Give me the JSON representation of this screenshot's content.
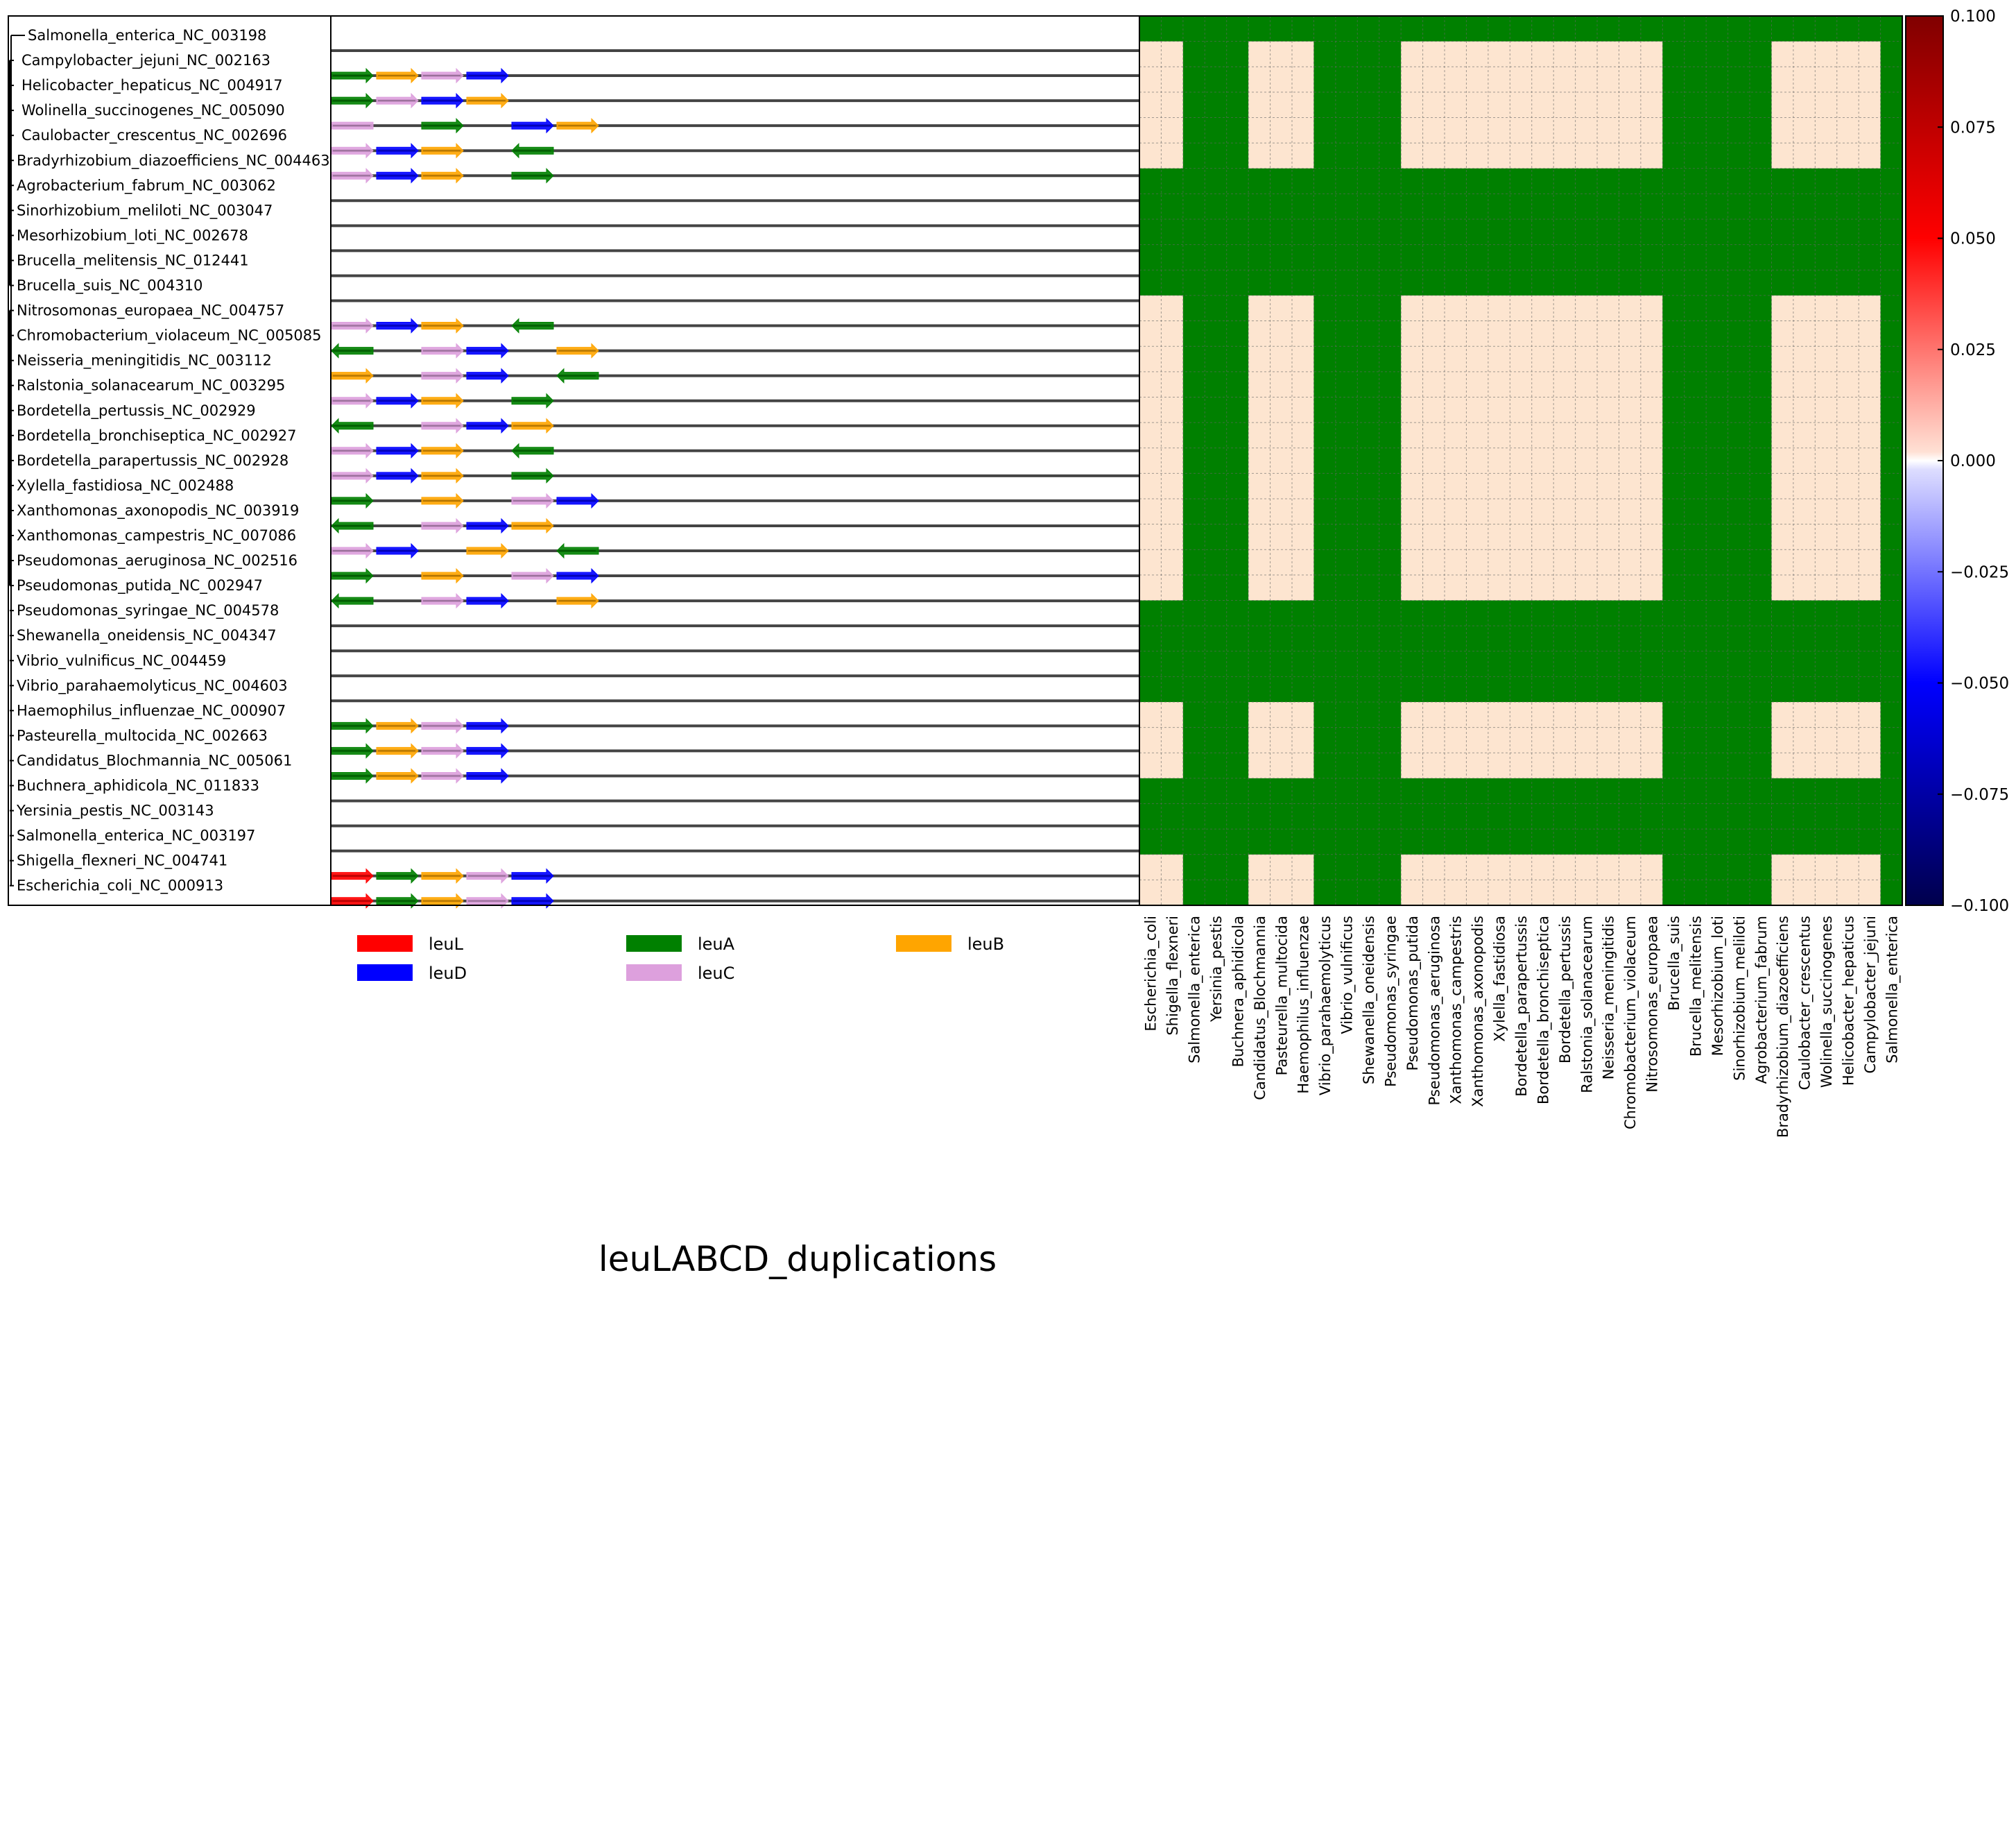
{
  "chart_data": [
    {
      "type": "gene-tracks",
      "title": "leuLABCD_duplications",
      "genomes": [
        {
          "name": "Salmonella_enterica_NC_003198",
          "genes": []
        },
        {
          "name": "Campylobacter_jejuni_NC_002163",
          "genes": [
            {
              "gene": "leuA",
              "slot": 0,
              "dir": 1
            },
            {
              "gene": "leuB",
              "slot": 1,
              "dir": 1
            },
            {
              "gene": "leuC",
              "slot": 2,
              "dir": 1
            },
            {
              "gene": "leuD",
              "slot": 3,
              "dir": 1
            }
          ]
        },
        {
          "name": "Helicobacter_hepaticus_NC_004917",
          "genes": [
            {
              "gene": "leuA",
              "slot": 0,
              "dir": 1
            },
            {
              "gene": "leuC",
              "slot": 1,
              "dir": 1
            },
            {
              "gene": "leuD",
              "slot": 2,
              "dir": 1
            },
            {
              "gene": "leuB",
              "slot": 3,
              "dir": 1
            }
          ]
        },
        {
          "name": "Wolinella_succinogenes_NC_005090",
          "genes": [
            {
              "gene": "leuC",
              "slot": 0,
              "dir": 0
            },
            {
              "gene": "leuA",
              "slot": 2,
              "dir": 1
            },
            {
              "gene": "leuD",
              "slot": 4,
              "dir": 1
            },
            {
              "gene": "leuB",
              "slot": 5,
              "dir": 1
            }
          ]
        },
        {
          "name": "Caulobacter_crescentus_NC_002696",
          "genes": [
            {
              "gene": "leuC",
              "slot": 0,
              "dir": 1
            },
            {
              "gene": "leuD",
              "slot": 1,
              "dir": 1
            },
            {
              "gene": "leuB",
              "slot": 2,
              "dir": 1
            },
            {
              "gene": "leuA",
              "slot": 4,
              "dir": -1
            }
          ]
        },
        {
          "name": "Bradyrhizobium_diazoefficiens_NC_004463",
          "genes": [
            {
              "gene": "leuC",
              "slot": 0,
              "dir": 1
            },
            {
              "gene": "leuD",
              "slot": 1,
              "dir": 1
            },
            {
              "gene": "leuB",
              "slot": 2,
              "dir": 1
            },
            {
              "gene": "leuA",
              "slot": 4,
              "dir": 1
            }
          ]
        },
        {
          "name": "Agrobacterium_fabrum_NC_003062",
          "genes": []
        },
        {
          "name": "Sinorhizobium_meliloti_NC_003047",
          "genes": []
        },
        {
          "name": "Mesorhizobium_loti_NC_002678",
          "genes": []
        },
        {
          "name": "Brucella_melitensis_NC_012441",
          "genes": []
        },
        {
          "name": "Brucella_suis_NC_004310",
          "genes": []
        },
        {
          "name": "Nitrosomonas_europaea_NC_004757",
          "genes": [
            {
              "gene": "leuC",
              "slot": 0,
              "dir": 1
            },
            {
              "gene": "leuD",
              "slot": 1,
              "dir": 1
            },
            {
              "gene": "leuB",
              "slot": 2,
              "dir": 1
            },
            {
              "gene": "leuA",
              "slot": 4,
              "dir": -1
            }
          ]
        },
        {
          "name": "Chromobacterium_violaceum_NC_005085",
          "genes": [
            {
              "gene": "leuA",
              "slot": 0,
              "dir": -1
            },
            {
              "gene": "leuC",
              "slot": 2,
              "dir": 1
            },
            {
              "gene": "leuD",
              "slot": 3,
              "dir": 1
            },
            {
              "gene": "leuB",
              "slot": 5,
              "dir": 1
            }
          ]
        },
        {
          "name": "Neisseria_meningitidis_NC_003112",
          "genes": [
            {
              "gene": "leuB",
              "slot": 0,
              "dir": 1
            },
            {
              "gene": "leuC",
              "slot": 2,
              "dir": 1
            },
            {
              "gene": "leuD",
              "slot": 3,
              "dir": 1
            },
            {
              "gene": "leuA",
              "slot": 5,
              "dir": -1
            }
          ]
        },
        {
          "name": "Ralstonia_solanacearum_NC_003295",
          "genes": [
            {
              "gene": "leuC",
              "slot": 0,
              "dir": 1
            },
            {
              "gene": "leuD",
              "slot": 1,
              "dir": 1
            },
            {
              "gene": "leuB",
              "slot": 2,
              "dir": 1
            },
            {
              "gene": "leuA",
              "slot": 4,
              "dir": 1
            }
          ]
        },
        {
          "name": "Bordetella_pertussis_NC_002929",
          "genes": [
            {
              "gene": "leuA",
              "slot": 0,
              "dir": -1
            },
            {
              "gene": "leuC",
              "slot": 2,
              "dir": 1
            },
            {
              "gene": "leuD",
              "slot": 3,
              "dir": 1
            },
            {
              "gene": "leuB",
              "slot": 4,
              "dir": 1
            }
          ]
        },
        {
          "name": "Bordetella_bronchiseptica_NC_002927",
          "genes": [
            {
              "gene": "leuC",
              "slot": 0,
              "dir": 1
            },
            {
              "gene": "leuD",
              "slot": 1,
              "dir": 1
            },
            {
              "gene": "leuB",
              "slot": 2,
              "dir": 1
            },
            {
              "gene": "leuA",
              "slot": 4,
              "dir": -1
            }
          ]
        },
        {
          "name": "Bordetella_parapertussis_NC_002928",
          "genes": [
            {
              "gene": "leuC",
              "slot": 0,
              "dir": 1
            },
            {
              "gene": "leuD",
              "slot": 1,
              "dir": 1
            },
            {
              "gene": "leuB",
              "slot": 2,
              "dir": 1
            },
            {
              "gene": "leuA",
              "slot": 4,
              "dir": 1
            }
          ]
        },
        {
          "name": "Xylella_fastidiosa_NC_002488",
          "genes": [
            {
              "gene": "leuA",
              "slot": 0,
              "dir": 1
            },
            {
              "gene": "leuB",
              "slot": 2,
              "dir": 1
            },
            {
              "gene": "leuC",
              "slot": 4,
              "dir": 1
            },
            {
              "gene": "leuD",
              "slot": 5,
              "dir": 1
            }
          ]
        },
        {
          "name": "Xanthomonas_axonopodis_NC_003919",
          "genes": [
            {
              "gene": "leuA",
              "slot": 0,
              "dir": -1
            },
            {
              "gene": "leuC",
              "slot": 2,
              "dir": 1
            },
            {
              "gene": "leuD",
              "slot": 3,
              "dir": 1
            },
            {
              "gene": "leuB",
              "slot": 4,
              "dir": 1
            }
          ]
        },
        {
          "name": "Xanthomonas_campestris_NC_007086",
          "genes": [
            {
              "gene": "leuC",
              "slot": 0,
              "dir": 1
            },
            {
              "gene": "leuD",
              "slot": 1,
              "dir": 1
            },
            {
              "gene": "leuB",
              "slot": 3,
              "dir": 1
            },
            {
              "gene": "leuA",
              "slot": 5,
              "dir": -1
            }
          ]
        },
        {
          "name": "Pseudomonas_aeruginosa_NC_002516",
          "genes": [
            {
              "gene": "leuA",
              "slot": 0,
              "dir": 1
            },
            {
              "gene": "leuB",
              "slot": 2,
              "dir": 1
            },
            {
              "gene": "leuC",
              "slot": 4,
              "dir": 1
            },
            {
              "gene": "leuD",
              "slot": 5,
              "dir": 1
            }
          ]
        },
        {
          "name": "Pseudomonas_putida_NC_002947",
          "genes": [
            {
              "gene": "leuA",
              "slot": 0,
              "dir": -1
            },
            {
              "gene": "leuC",
              "slot": 2,
              "dir": 1
            },
            {
              "gene": "leuD",
              "slot": 3,
              "dir": 1
            },
            {
              "gene": "leuB",
              "slot": 5,
              "dir": 1
            }
          ]
        },
        {
          "name": "Pseudomonas_syringae_NC_004578",
          "genes": []
        },
        {
          "name": "Shewanella_oneidensis_NC_004347",
          "genes": []
        },
        {
          "name": "Vibrio_vulnificus_NC_004459",
          "genes": []
        },
        {
          "name": "Vibrio_parahaemolyticus_NC_004603",
          "genes": []
        },
        {
          "name": "Haemophilus_influenzae_NC_000907",
          "genes": [
            {
              "gene": "leuA",
              "slot": 0,
              "dir": 1
            },
            {
              "gene": "leuB",
              "slot": 1,
              "dir": 1
            },
            {
              "gene": "leuC",
              "slot": 2,
              "dir": 1
            },
            {
              "gene": "leuD",
              "slot": 3,
              "dir": 1
            }
          ]
        },
        {
          "name": "Pasteurella_multocida_NC_002663",
          "genes": [
            {
              "gene": "leuA",
              "slot": 0,
              "dir": 1
            },
            {
              "gene": "leuB",
              "slot": 1,
              "dir": 1
            },
            {
              "gene": "leuC",
              "slot": 2,
              "dir": 1
            },
            {
              "gene": "leuD",
              "slot": 3,
              "dir": 1
            }
          ]
        },
        {
          "name": "Candidatus_Blochmannia_NC_005061",
          "genes": [
            {
              "gene": "leuA",
              "slot": 0,
              "dir": 1
            },
            {
              "gene": "leuB",
              "slot": 1,
              "dir": 1
            },
            {
              "gene": "leuC",
              "slot": 2,
              "dir": 1
            },
            {
              "gene": "leuD",
              "slot": 3,
              "dir": 1
            }
          ]
        },
        {
          "name": "Buchnera_aphidicola_NC_011833",
          "genes": []
        },
        {
          "name": "Yersinia_pestis_NC_003143",
          "genes": []
        },
        {
          "name": "Salmonella_enterica_NC_003197",
          "genes": []
        },
        {
          "name": "Shigella_flexneri_NC_004741",
          "genes": [
            {
              "gene": "leuL",
              "slot": 0,
              "dir": 1
            },
            {
              "gene": "leuA",
              "slot": 1,
              "dir": 1
            },
            {
              "gene": "leuB",
              "slot": 2,
              "dir": 1
            },
            {
              "gene": "leuC",
              "slot": 3,
              "dir": 1
            },
            {
              "gene": "leuD",
              "slot": 4,
              "dir": 1
            }
          ]
        },
        {
          "name": "Escherichia_coli_NC_000913",
          "genes": [
            {
              "gene": "leuL",
              "slot": 0,
              "dir": 1
            },
            {
              "gene": "leuA",
              "slot": 1,
              "dir": 1
            },
            {
              "gene": "leuB",
              "slot": 2,
              "dir": 1
            },
            {
              "gene": "leuC",
              "slot": 3,
              "dir": 1
            },
            {
              "gene": "leuD",
              "slot": 4,
              "dir": 1
            }
          ]
        }
      ],
      "legend": [
        {
          "label": "leuL",
          "color": "#ff0000"
        },
        {
          "label": "leuA",
          "color": "#008000"
        },
        {
          "label": "leuB",
          "color": "#ffa500"
        },
        {
          "label": "leuD",
          "color": "#0000ff"
        },
        {
          "label": "leuC",
          "color": "#dda0dd"
        }
      ]
    },
    {
      "type": "heatmap",
      "x_categories": [
        "Escherichia_coli",
        "Shigella_flexneri",
        "Salmonella_enterica",
        "Yersinia_pestis",
        "Buchnera_aphidicola",
        "Candidatus_Blochmannia",
        "Pasteurella_multocida",
        "Haemophilus_influenzae",
        "Vibrio_parahaemolyticus",
        "Vibrio_vulnificus",
        "Shewanella_oneidensis",
        "Pseudomonas_syringae",
        "Pseudomonas_putida",
        "Pseudomonas_aeruginosa",
        "Xanthomonas_campestris",
        "Xanthomonas_axonopodis",
        "Xylella_fastidiosa",
        "Bordetella_parapertussis",
        "Bordetella_bronchiseptica",
        "Bordetella_pertussis",
        "Ralstonia_solanacearum",
        "Neisseria_meningitidis",
        "Chromobacterium_violaceum",
        "Nitrosomonas_europaea",
        "Brucella_suis",
        "Brucella_melitensis",
        "Mesorhizobium_loti",
        "Sinorhizobium_meliloti",
        "Agrobacterium_fabrum",
        "Bradyrhizobium_diazoefficiens",
        "Caulobacter_crescentus",
        "Wolinella_succinogenes",
        "Helicobacter_hepaticus",
        "Campylobacter_jejuni",
        "Salmonella_enterica"
      ],
      "present_pattern": [
        1,
        1,
        0,
        0,
        0,
        1,
        1,
        1,
        0,
        0,
        0,
        0,
        1,
        1,
        1,
        1,
        1,
        1,
        1,
        1,
        1,
        1,
        1,
        1,
        0,
        0,
        0,
        0,
        0,
        1,
        1,
        1,
        1,
        1,
        0
      ],
      "cell_rule": "matched cell (both genomes carry the leu operon) = 0.000 value color; otherwise masked green",
      "value": 0.0,
      "mask_color": "#008000",
      "zero_color": "#fde5d0",
      "colorbar": {
        "min": -0.1,
        "max": 0.1,
        "ticks": [
          "0.100",
          "0.075",
          "0.050",
          "0.025",
          "0.000",
          "−0.025",
          "−0.050",
          "−0.075",
          "−0.100"
        ],
        "colormap": "seismic"
      }
    }
  ]
}
